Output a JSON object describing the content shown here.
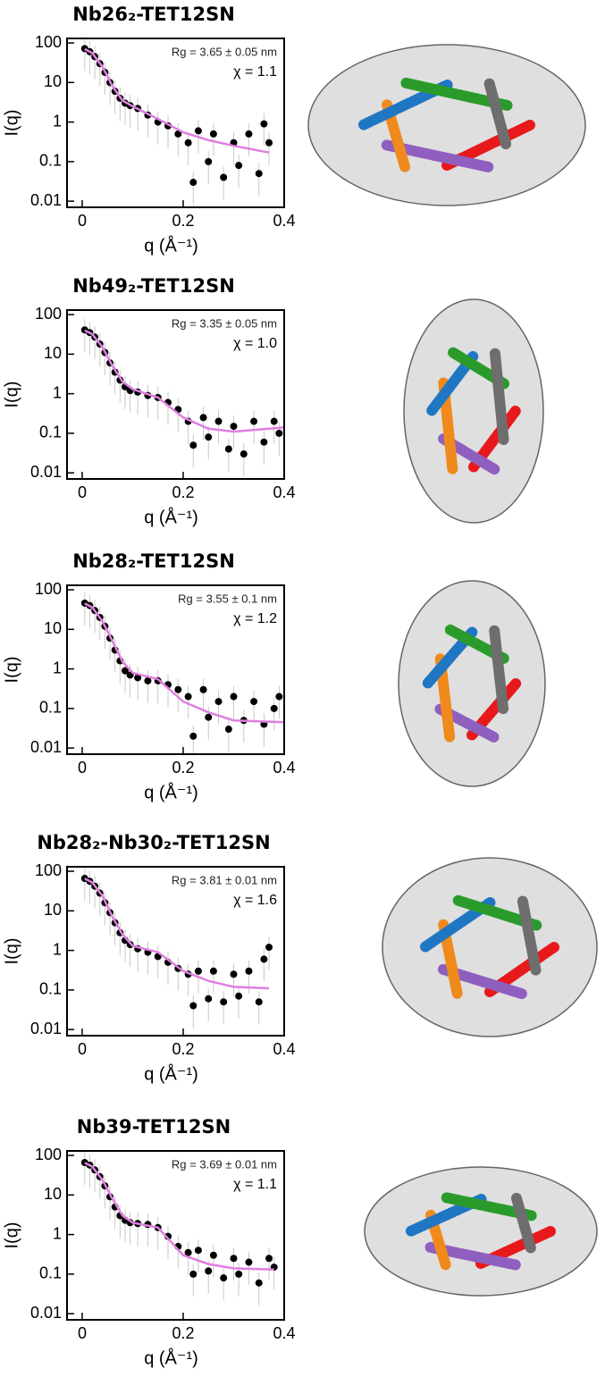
{
  "chart_data": [
    {
      "type": "scatter",
      "title": "Nb26₂-TET12SN",
      "annotations": [
        "Rg = 3.65 ± 0.05 nm",
        "χ = 1.1"
      ],
      "xlabel": "q (Å⁻¹)",
      "ylabel": "I(q)",
      "log_y": true,
      "xlim": [
        -0.03,
        0.4
      ],
      "ylim": [
        0.007,
        130
      ],
      "xticks": [
        0,
        0.2,
        0.4
      ],
      "yticks": [
        0.01,
        0.1,
        1,
        10,
        100
      ],
      "points": {
        "color": "#000000",
        "x": [
          0.005,
          0.015,
          0.025,
          0.035,
          0.045,
          0.055,
          0.065,
          0.075,
          0.085,
          0.095,
          0.11,
          0.13,
          0.15,
          0.17,
          0.19,
          0.21,
          0.22,
          0.23,
          0.25,
          0.26,
          0.28,
          0.3,
          0.31,
          0.33,
          0.35,
          0.36,
          0.37
        ],
        "y": [
          72,
          60,
          45,
          30,
          18,
          10,
          6,
          4,
          3,
          2.6,
          2.2,
          1.5,
          1.0,
          0.8,
          0.5,
          0.3,
          0.03,
          0.6,
          0.1,
          0.5,
          0.04,
          0.3,
          0.08,
          0.5,
          0.05,
          0.9,
          0.3
        ]
      },
      "fit": {
        "color": "#e07ee0",
        "x": [
          0.005,
          0.02,
          0.04,
          0.06,
          0.08,
          0.1,
          0.15,
          0.2,
          0.25,
          0.3,
          0.37
        ],
        "y": [
          70,
          55,
          25,
          8,
          3.5,
          2.5,
          1.2,
          0.55,
          0.35,
          0.25,
          0.17
        ]
      }
    },
    {
      "type": "scatter",
      "title": "Nb49₂-TET12SN",
      "annotations": [
        "Rg = 3.35 ± 0.05 nm",
        "χ = 1.0"
      ],
      "xlabel": "q (Å⁻¹)",
      "ylabel": "I(q)",
      "log_y": true,
      "xlim": [
        -0.03,
        0.4
      ],
      "ylim": [
        0.007,
        130
      ],
      "xticks": [
        0,
        0.2,
        0.4
      ],
      "yticks": [
        0.01,
        0.1,
        1,
        10,
        100
      ],
      "points": {
        "color": "#000000",
        "x": [
          0.005,
          0.015,
          0.025,
          0.035,
          0.045,
          0.055,
          0.065,
          0.075,
          0.085,
          0.095,
          0.11,
          0.13,
          0.15,
          0.17,
          0.19,
          0.21,
          0.22,
          0.24,
          0.25,
          0.27,
          0.29,
          0.3,
          0.32,
          0.34,
          0.36,
          0.38,
          0.39
        ],
        "y": [
          41,
          35,
          27,
          18,
          11,
          6,
          3.5,
          2.2,
          1.5,
          1.2,
          1.1,
          0.9,
          0.8,
          0.6,
          0.4,
          0.2,
          0.05,
          0.25,
          0.08,
          0.2,
          0.04,
          0.15,
          0.03,
          0.2,
          0.06,
          0.2,
          0.1
        ]
      },
      "fit": {
        "color": "#e07ee0",
        "x": [
          0.005,
          0.02,
          0.04,
          0.06,
          0.08,
          0.1,
          0.15,
          0.2,
          0.25,
          0.3,
          0.4
        ],
        "y": [
          40,
          32,
          15,
          5,
          2,
          1.3,
          0.8,
          0.25,
          0.13,
          0.11,
          0.14
        ]
      }
    },
    {
      "type": "scatter",
      "title": "Nb28₂-TET12SN",
      "annotations": [
        "Rg = 3.55 ± 0.1 nm",
        "χ = 1.2"
      ],
      "xlabel": "q (Å⁻¹)",
      "ylabel": "I(q)",
      "log_y": true,
      "xlim": [
        -0.03,
        0.4
      ],
      "ylim": [
        0.007,
        130
      ],
      "xticks": [
        0,
        0.2,
        0.4
      ],
      "yticks": [
        0.01,
        0.1,
        1,
        10,
        100
      ],
      "points": {
        "color": "#000000",
        "x": [
          0.005,
          0.015,
          0.025,
          0.035,
          0.045,
          0.055,
          0.065,
          0.075,
          0.085,
          0.095,
          0.11,
          0.13,
          0.15,
          0.17,
          0.19,
          0.21,
          0.22,
          0.24,
          0.25,
          0.27,
          0.29,
          0.3,
          0.32,
          0.34,
          0.36,
          0.38,
          0.39
        ],
        "y": [
          46,
          40,
          30,
          20,
          12,
          6,
          3,
          1.6,
          0.9,
          0.7,
          0.6,
          0.5,
          0.5,
          0.4,
          0.3,
          0.2,
          0.02,
          0.3,
          0.06,
          0.15,
          0.03,
          0.2,
          0.05,
          0.15,
          0.04,
          0.1,
          0.2
        ]
      },
      "fit": {
        "color": "#e07ee0",
        "x": [
          0.005,
          0.02,
          0.04,
          0.06,
          0.08,
          0.1,
          0.15,
          0.2,
          0.25,
          0.3,
          0.4
        ],
        "y": [
          45,
          36,
          16,
          5,
          1.5,
          0.8,
          0.55,
          0.15,
          0.08,
          0.05,
          0.045
        ]
      }
    },
    {
      "type": "scatter",
      "title": "Nb28₂-Nb30₂-TET12SN",
      "annotations": [
        "Rg = 3.81 ± 0.01 nm",
        "χ = 1.6"
      ],
      "xlabel": "q (Å⁻¹)",
      "ylabel": "I(q)",
      "log_y": true,
      "xlim": [
        -0.03,
        0.4
      ],
      "ylim": [
        0.007,
        130
      ],
      "xticks": [
        0,
        0.2,
        0.4
      ],
      "yticks": [
        0.01,
        0.1,
        1,
        10,
        100
      ],
      "points": {
        "color": "#000000",
        "x": [
          0.005,
          0.015,
          0.025,
          0.035,
          0.045,
          0.055,
          0.065,
          0.075,
          0.085,
          0.095,
          0.11,
          0.13,
          0.15,
          0.17,
          0.19,
          0.21,
          0.22,
          0.23,
          0.25,
          0.26,
          0.28,
          0.3,
          0.31,
          0.33,
          0.35,
          0.36,
          0.37
        ],
        "y": [
          66,
          56,
          42,
          28,
          16,
          9,
          5,
          2.8,
          1.8,
          1.4,
          1.1,
          0.9,
          0.7,
          0.5,
          0.35,
          0.25,
          0.04,
          0.3,
          0.06,
          0.3,
          0.05,
          0.25,
          0.07,
          0.3,
          0.05,
          0.6,
          1.2
        ]
      },
      "fit": {
        "color": "#e07ee0",
        "x": [
          0.005,
          0.02,
          0.04,
          0.06,
          0.08,
          0.1,
          0.15,
          0.2,
          0.25,
          0.3,
          0.37
        ],
        "y": [
          65,
          52,
          24,
          7,
          2.5,
          1.3,
          0.9,
          0.3,
          0.17,
          0.12,
          0.11
        ]
      }
    },
    {
      "type": "scatter",
      "title": "Nb39-TET12SN",
      "annotations": [
        "Rg = 3.69 ± 0.01 nm",
        "χ = 1.1"
      ],
      "xlabel": "q (Å⁻¹)",
      "ylabel": "I(q)",
      "log_y": true,
      "xlim": [
        -0.03,
        0.4
      ],
      "ylim": [
        0.007,
        130
      ],
      "xticks": [
        0,
        0.2,
        0.4
      ],
      "yticks": [
        0.01,
        0.1,
        1,
        10,
        100
      ],
      "points": {
        "color": "#000000",
        "x": [
          0.005,
          0.015,
          0.025,
          0.035,
          0.045,
          0.055,
          0.065,
          0.075,
          0.085,
          0.095,
          0.11,
          0.13,
          0.15,
          0.17,
          0.19,
          0.21,
          0.22,
          0.23,
          0.25,
          0.26,
          0.28,
          0.3,
          0.31,
          0.33,
          0.35,
          0.37,
          0.38
        ],
        "y": [
          66,
          57,
          43,
          29,
          17,
          9,
          5,
          3,
          2.3,
          2,
          1.9,
          1.8,
          1.5,
          0.9,
          0.5,
          0.35,
          0.1,
          0.4,
          0.12,
          0.3,
          0.08,
          0.25,
          0.1,
          0.2,
          0.06,
          0.25,
          0.15
        ]
      },
      "fit": {
        "color": "#e07ee0",
        "x": [
          0.005,
          0.02,
          0.04,
          0.06,
          0.08,
          0.1,
          0.15,
          0.2,
          0.25,
          0.3,
          0.38
        ],
        "y": [
          65,
          52,
          24,
          8,
          3,
          2,
          1.5,
          0.3,
          0.18,
          0.14,
          0.13
        ]
      }
    }
  ]
}
